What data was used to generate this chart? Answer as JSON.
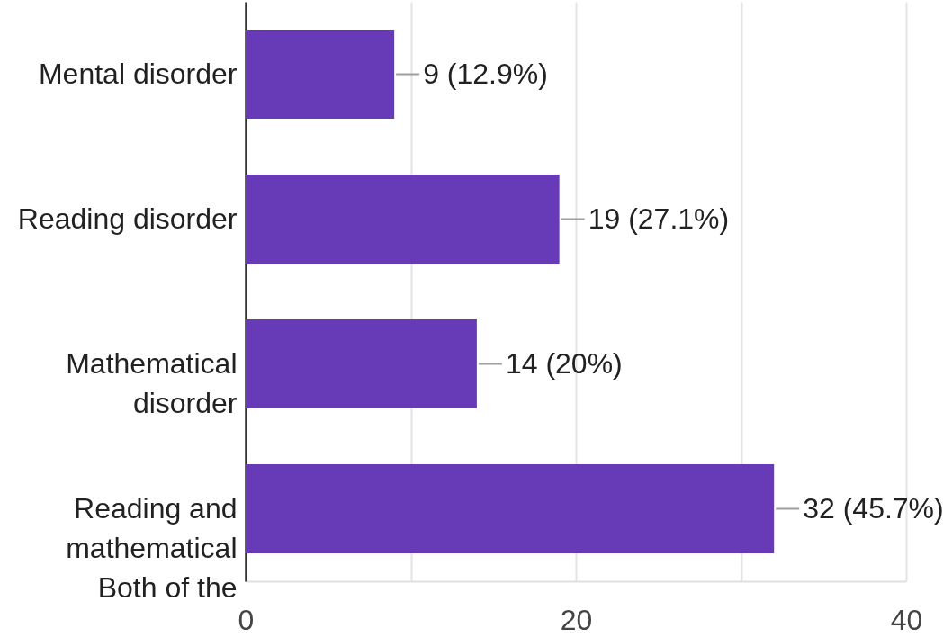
{
  "chart_data": {
    "type": "bar",
    "orientation": "horizontal",
    "categories": [
      "Mental disorder",
      "Reading disorder",
      "Mathematical disorder",
      "Reading and mathematical Both of the"
    ],
    "values": [
      9,
      19,
      14,
      32
    ],
    "color": "#673ab7",
    "value_labels": [
      "9 (12.9%)",
      "19 (27.1%)",
      "14 (20%)",
      "32 (45.7%)"
    ],
    "xlim": [
      0,
      40
    ],
    "xticks": [
      0,
      {
        "value": 10,
        "label": null
      },
      20,
      {
        "value": 30,
        "label": null
      },
      40
    ],
    "grid": "x"
  }
}
